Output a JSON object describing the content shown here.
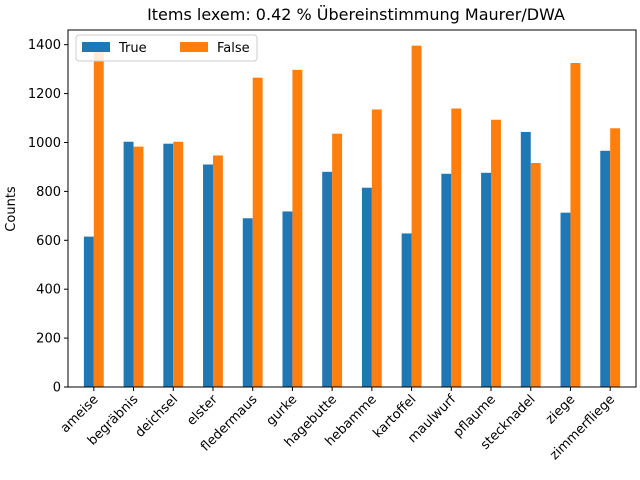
{
  "chart_data": {
    "type": "bar",
    "title": "Items lexem: 0.42 % Übereinstimmung Maurer/DWA",
    "xlabel": "",
    "ylabel": "Counts",
    "ylim": [
      0,
      1460
    ],
    "yticks": [
      0,
      200,
      400,
      600,
      800,
      1000,
      1200,
      1400
    ],
    "grid": false,
    "legend_position": "top-left",
    "categories": [
      "ameise",
      "begräbnis",
      "deichsel",
      "elster",
      "fledermaus",
      "gurke",
      "hagebutte",
      "hebamme",
      "kartoffel",
      "maulwurf",
      "pflaume",
      "stecknadel",
      "ziege",
      "zimmerfliege"
    ],
    "series": [
      {
        "name": "True",
        "color": "#1f77b4",
        "values": [
          615,
          1003,
          995,
          910,
          690,
          718,
          880,
          815,
          628,
          872,
          876,
          1043,
          713,
          966
        ]
      },
      {
        "name": "False",
        "color": "#ff7f0e",
        "values": [
          1370,
          983,
          1003,
          947,
          1265,
          1297,
          1036,
          1135,
          1396,
          1139,
          1093,
          916,
          1325,
          1058
        ]
      }
    ]
  }
}
